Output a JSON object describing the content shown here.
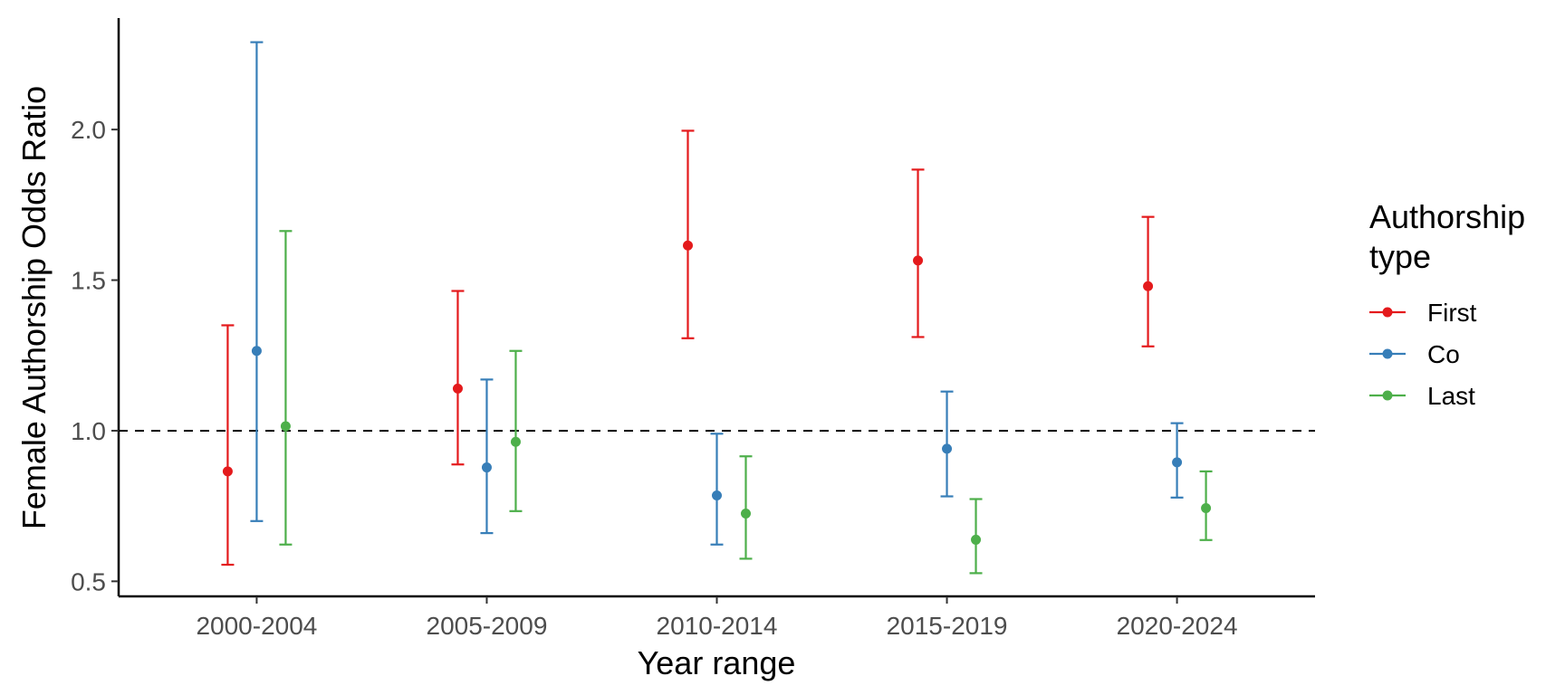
{
  "chart_data": {
    "type": "scatter",
    "subtype": "point-range with error bars",
    "categories": [
      "2000-2004",
      "2005-2009",
      "2010-2014",
      "2015-2019",
      "2020-2024"
    ],
    "xlabel": "Year range",
    "ylabel": "Female Authorship Odds Ratio",
    "ylim": [
      0.45,
      2.37
    ],
    "yticks": [
      0.5,
      1.0,
      1.5,
      2.0
    ],
    "ytick_labels": [
      "0.5",
      "1.0",
      "1.5",
      "2.0"
    ],
    "reference_line": {
      "y": 1.0,
      "style": "dashed"
    },
    "grid": false,
    "legend": {
      "title_lines": [
        "Authorship",
        "type"
      ],
      "position": "right"
    },
    "series": [
      {
        "name": "First",
        "color": "#e41a1c",
        "values": [
          0.865,
          1.14,
          1.615,
          1.565,
          1.48
        ],
        "lower": [
          0.555,
          0.888,
          1.307,
          1.311,
          1.28
        ],
        "upper": [
          1.35,
          1.464,
          1.996,
          1.867,
          1.71
        ]
      },
      {
        "name": "Co",
        "color": "#377eb8",
        "values": [
          1.265,
          0.878,
          0.785,
          0.94,
          0.895
        ],
        "lower": [
          0.7,
          0.66,
          0.622,
          0.782,
          0.778
        ],
        "upper": [
          2.29,
          1.17,
          0.99,
          1.13,
          1.025
        ]
      },
      {
        "name": "Last",
        "color": "#4daf4a",
        "values": [
          1.015,
          0.963,
          0.725,
          0.638,
          0.743
        ],
        "lower": [
          0.622,
          0.733,
          0.575,
          0.527,
          0.637
        ],
        "upper": [
          1.663,
          1.265,
          0.915,
          0.773,
          0.865
        ]
      }
    ]
  }
}
